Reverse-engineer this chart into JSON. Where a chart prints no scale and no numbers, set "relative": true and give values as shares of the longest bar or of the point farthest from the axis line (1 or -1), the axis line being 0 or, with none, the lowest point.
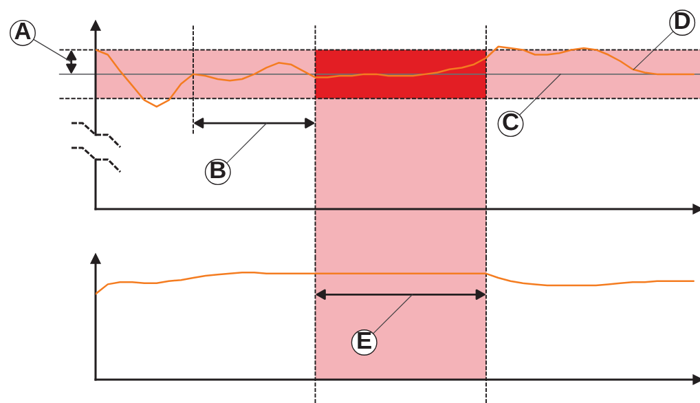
{
  "chart_data": [
    {
      "type": "line",
      "relative": true,
      "categories": [
        null,
        null,
        null,
        null,
        null,
        null,
        null,
        null,
        null,
        null,
        null,
        null,
        null,
        null,
        null,
        null,
        null,
        null,
        null,
        null,
        null,
        null,
        null,
        null,
        null,
        null,
        null,
        null,
        null,
        null,
        null,
        null,
        null,
        null,
        null,
        null,
        null,
        null,
        null,
        null,
        null,
        null,
        null,
        null,
        null,
        null,
        null,
        null,
        null,
        null
      ],
      "series": [
        {
          "color": "#f47c20",
          "values": [
            0.98,
            0.95,
            0.85,
            0.76,
            0.67,
            0.63,
            0.67,
            0.77,
            0.83,
            0.82,
            0.8,
            0.79,
            0.8,
            0.83,
            0.87,
            0.9,
            0.89,
            0.85,
            0.81,
            0.81,
            0.82,
            0.82,
            0.83,
            0.83,
            0.82,
            0.82,
            0.82,
            0.83,
            0.84,
            0.86,
            0.87,
            0.89,
            0.93,
            1.0,
            0.99,
            0.98,
            0.95,
            0.95,
            0.96,
            0.98,
            0.99,
            0.98,
            0.95,
            0.91,
            0.86,
            0.84,
            0.83,
            0.83,
            0.83,
            0.83
          ]
        }
      ],
      "bands": [
        {
          "axis": "y",
          "from": 0.68,
          "to": 0.98,
          "color": "#f4b3b8"
        }
      ],
      "ref_lines": [
        {
          "axis": "y",
          "value": 0.83,
          "line_style": "solid",
          "color": "#6d6e71"
        },
        {
          "axis": "y",
          "value": 0.98,
          "line_style": "dashed",
          "color": "#231f20"
        },
        {
          "axis": "y",
          "value": 0.68,
          "line_style": "dashed",
          "color": "#231f20"
        }
      ],
      "annotations": [
        "A",
        "B",
        "C",
        "D"
      ]
    },
    {
      "type": "line",
      "relative": true,
      "categories": [
        null,
        null,
        null,
        null,
        null,
        null,
        null,
        null,
        null,
        null,
        null,
        null,
        null,
        null,
        null,
        null,
        null,
        null,
        null,
        null,
        null,
        null,
        null,
        null,
        null,
        null,
        null,
        null,
        null,
        null,
        null,
        null,
        null,
        null,
        null,
        null,
        null,
        null,
        null,
        null,
        null,
        null,
        null,
        null,
        null,
        null,
        null,
        null,
        null,
        null
      ],
      "series": [
        {
          "color": "#f47c20",
          "values": [
            0.8,
            0.89,
            0.91,
            0.91,
            0.9,
            0.9,
            0.92,
            0.93,
            0.95,
            0.97,
            0.98,
            0.99,
            1.0,
            1.0,
            0.99,
            0.99,
            0.99,
            0.99,
            0.99,
            0.99,
            0.99,
            0.99,
            0.99,
            0.99,
            0.99,
            0.99,
            0.99,
            0.99,
            0.99,
            0.99,
            0.99,
            0.99,
            0.99,
            0.95,
            0.92,
            0.9,
            0.89,
            0.88,
            0.88,
            0.88,
            0.88,
            0.88,
            0.89,
            0.9,
            0.91,
            0.91,
            0.92,
            0.92,
            0.92,
            0.92
          ]
        }
      ],
      "annotations": [
        "E"
      ]
    }
  ]
}
